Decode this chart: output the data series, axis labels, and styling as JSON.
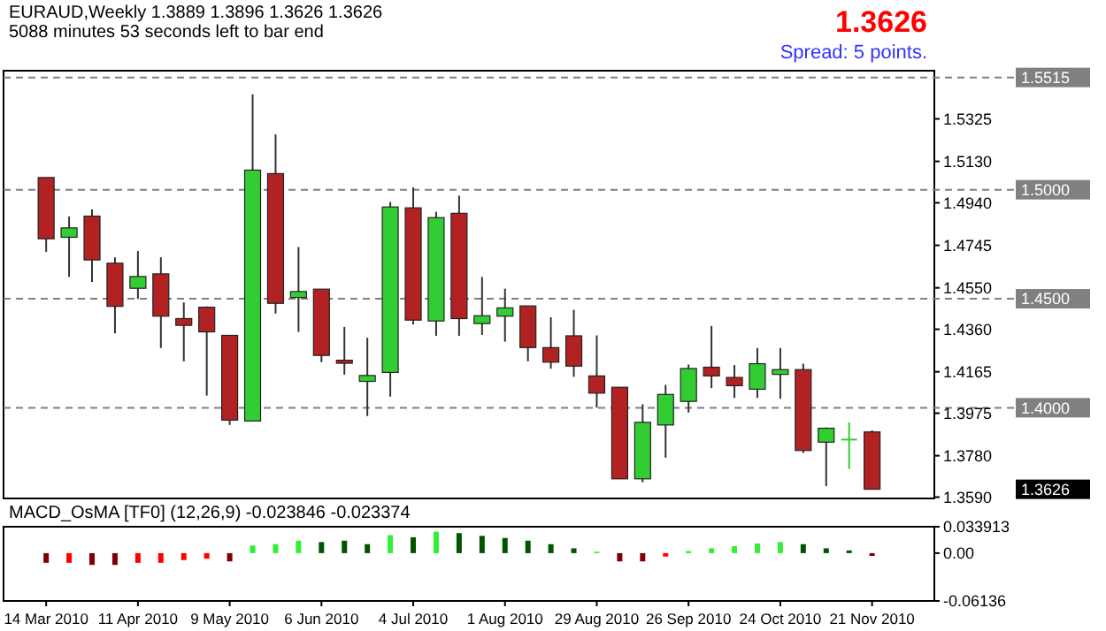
{
  "chart_data": [
    {
      "type": "candlestick",
      "title": "EURAUD,Weekly  1.3889 1.3896 1.3626 1.3626",
      "subtitle": "5088 minutes 53 seconds left to bar end",
      "x": [
        "2010-03-14",
        "2010-03-21",
        "2010-03-28",
        "2010-04-04",
        "2010-04-11",
        "2010-04-18",
        "2010-04-25",
        "2010-05-02",
        "2010-05-09",
        "2010-05-16",
        "2010-05-23",
        "2010-05-30",
        "2010-06-06",
        "2010-06-13",
        "2010-06-20",
        "2010-06-27",
        "2010-07-04",
        "2010-07-11",
        "2010-07-18",
        "2010-07-25",
        "2010-08-01",
        "2010-08-08",
        "2010-08-15",
        "2010-08-22",
        "2010-08-29",
        "2010-09-05",
        "2010-09-12",
        "2010-09-19",
        "2010-09-26",
        "2010-10-03",
        "2010-10-10",
        "2010-10-17",
        "2010-10-24",
        "2010-10-31",
        "2010-11-07",
        "2010-11-14",
        "2010-11-21"
      ],
      "ohlc": [
        [
          1.5056,
          1.5056,
          1.4715,
          1.4775
        ],
        [
          1.4782,
          1.4877,
          1.46,
          1.4825
        ],
        [
          1.4879,
          1.491,
          1.4577,
          1.4678
        ],
        [
          1.4663,
          1.469,
          1.4341,
          1.4465
        ],
        [
          1.4548,
          1.4719,
          1.4499,
          1.4602
        ],
        [
          1.4614,
          1.469,
          1.4274,
          1.442
        ],
        [
          1.4409,
          1.4483,
          1.4213,
          1.4378
        ],
        [
          1.4461,
          1.4465,
          1.4056,
          1.4348
        ],
        [
          1.4332,
          1.4332,
          1.3921,
          1.3943
        ],
        [
          1.3939,
          1.5438,
          1.3939,
          1.509
        ],
        [
          1.5074,
          1.5254,
          1.4432,
          1.4479
        ],
        [
          1.4506,
          1.4737,
          1.4348,
          1.4533
        ],
        [
          1.4544,
          1.4544,
          1.4209,
          1.424
        ],
        [
          1.4218,
          1.4371,
          1.4152,
          1.4204
        ],
        [
          1.4121,
          1.4321,
          1.3962,
          1.4148
        ],
        [
          1.4162,
          1.4944,
          1.4051,
          1.4921
        ],
        [
          1.4917,
          1.5011,
          1.4382,
          1.4402
        ],
        [
          1.4398,
          1.4899,
          1.433,
          1.4872
        ],
        [
          1.4892,
          1.4973,
          1.433,
          1.4409
        ],
        [
          1.4386,
          1.46,
          1.4334,
          1.4422
        ],
        [
          1.442,
          1.4546,
          1.4303,
          1.4458
        ],
        [
          1.4467,
          1.4467,
          1.4213,
          1.4276
        ],
        [
          1.4276,
          1.4415,
          1.4179,
          1.4209
        ],
        [
          1.433,
          1.4449,
          1.4142,
          1.4191
        ],
        [
          1.4146,
          1.4332,
          1.4,
          1.4067
        ],
        [
          1.4094,
          1.4094,
          1.3674,
          1.3674
        ],
        [
          1.3674,
          1.4016,
          1.3658,
          1.3933
        ],
        [
          1.3921,
          1.4105,
          1.3771,
          1.4061
        ],
        [
          1.4029,
          1.4198,
          1.3978,
          1.418
        ],
        [
          1.4186,
          1.4375,
          1.409,
          1.4146
        ],
        [
          1.4139,
          1.4196,
          1.4045,
          1.4101
        ],
        [
          1.4085,
          1.4274,
          1.4045,
          1.4202
        ],
        [
          1.4153,
          1.4274,
          1.4041,
          1.4175
        ],
        [
          1.4175,
          1.4202,
          1.3793,
          1.3804
        ],
        [
          1.3842,
          1.391,
          1.364,
          1.3906
        ],
        [
          1.3858,
          1.3933,
          1.3719,
          1.3858
        ],
        [
          1.3889,
          1.3896,
          1.3626,
          1.3626
        ]
      ],
      "colors": [
        "#b22222",
        "#32cd32",
        "#b22222",
        "#b22222",
        "#32cd32",
        "#b22222",
        "#b22222",
        "#b22222",
        "#b22222",
        "#32cd32",
        "#b22222",
        "#32cd32",
        "#b22222",
        "#b22222",
        "#32cd32",
        "#32cd32",
        "#b22222",
        "#32cd32",
        "#b22222",
        "#32cd32",
        "#32cd32",
        "#b22222",
        "#b22222",
        "#b22222",
        "#b22222",
        "#b22222",
        "#32cd32",
        "#32cd32",
        "#32cd32",
        "#b22222",
        "#b22222",
        "#32cd32",
        "#32cd32",
        "#b22222",
        "#32cd32",
        "#32cd32",
        "#b22222"
      ],
      "xlim": [
        "2010-03-01",
        "2010-12-10"
      ],
      "ylim": [
        1.3584,
        1.5546
      ],
      "yticks": [
        1.5325,
        {
          "value": 1.513,
          "label": "1.5130"
        },
        {
          "value": 1.494,
          "label": "1.4940"
        },
        1.4745,
        {
          "value": 1.455,
          "label": "1.4550"
        },
        {
          "value": 1.436,
          "label": "1.4360"
        },
        1.4165,
        1.3975,
        {
          "value": 1.378,
          "label": "1.3780"
        },
        {
          "value": 1.359,
          "label": "1.3590"
        }
      ],
      "tick_labels": "y",
      "ref_lines": [
        {
          "axis": "y",
          "value": 1.5515,
          "label": "1.5515",
          "color": "#808080",
          "line_style": "dashed"
        },
        {
          "axis": "y",
          "value": 1.5,
          "label": "1.5000",
          "color": "#808080",
          "line_style": "dashed"
        },
        {
          "axis": "y",
          "value": 1.45,
          "label": "1.4500",
          "color": "#808080",
          "line_style": "dashed"
        },
        {
          "axis": "y",
          "value": 1.4,
          "label": "1.4000",
          "color": "#808080",
          "line_style": "dashed"
        }
      ],
      "annotations": [
        "1.3626",
        "1.3626",
        "Spread: 5 points."
      ]
    },
    {
      "type": "bar",
      "title": "MACD_OsMA [TF0] (12,26,9)  -0.023846 -0.023374",
      "x": [
        "2010-03-14",
        "2010-03-21",
        "2010-03-28",
        "2010-04-04",
        "2010-04-11",
        "2010-04-18",
        "2010-04-25",
        "2010-05-02",
        "2010-05-09",
        "2010-05-16",
        "2010-05-23",
        "2010-05-30",
        "2010-06-06",
        "2010-06-13",
        "2010-06-20",
        "2010-06-27",
        "2010-07-04",
        "2010-07-11",
        "2010-07-18",
        "2010-07-25",
        "2010-08-01",
        "2010-08-08",
        "2010-08-15",
        "2010-08-22",
        "2010-08-29",
        "2010-09-05",
        "2010-09-12",
        "2010-09-19",
        "2010-09-26",
        "2010-10-03",
        "2010-10-10",
        "2010-10-17",
        "2010-10-24",
        "2010-10-31",
        "2010-11-07",
        "2010-11-14",
        "2010-11-21"
      ],
      "values": [
        -0.0124,
        -0.0124,
        -0.0151,
        -0.0151,
        -0.0124,
        -0.0124,
        -0.0089,
        -0.0071,
        -0.0106,
        0.0098,
        0.0115,
        0.016,
        0.0142,
        0.016,
        0.0115,
        0.0231,
        0.0204,
        0.0275,
        0.0257,
        0.0222,
        0.0195,
        0.016,
        0.0115,
        0.0062,
        0.0018,
        -0.0106,
        -0.0106,
        -0.0044,
        0.0027,
        0.0062,
        0.0089,
        0.0124,
        0.0142,
        0.0115,
        0.0062,
        0.0035,
        -0.0035
      ],
      "colors": [
        "#800000",
        "#ff0000",
        "#800000",
        "#800000",
        "#ff0000",
        "#ff0000",
        "#ff0000",
        "#ff0000",
        "#800000",
        "#33ee33",
        "#33ee33",
        "#33ee33",
        "#005500",
        "#005500",
        "#005500",
        "#33ee33",
        "#005500",
        "#33ee33",
        "#005500",
        "#005500",
        "#005500",
        "#005500",
        "#005500",
        "#005500",
        "#33ee33",
        "#800000",
        "#800000",
        "#ff0000",
        "#33ee33",
        "#33ee33",
        "#33ee33",
        "#33ee33",
        "#33ee33",
        "#005500",
        "#005500",
        "#005500",
        "#800000"
      ],
      "xlim": [
        "2010-03-01",
        "2010-12-10"
      ],
      "ylim": [
        -0.06136,
        0.033913
      ],
      "yticks": [
        0.033913,
        {
          "value": 0,
          "label": "0.00"
        },
        -0.06136
      ],
      "xticks": [
        {
          "value": "2010-03-14",
          "label": "14 Mar 2010"
        },
        {
          "value": "2010-04-11",
          "label": "11 Apr 2010"
        },
        {
          "value": "2010-05-09",
          "label": "9 May 2010"
        },
        {
          "value": "2010-06-06",
          "label": "6 Jun 2010"
        },
        {
          "value": "2010-07-04",
          "label": "4 Jul 2010"
        },
        {
          "value": "2010-08-01",
          "label": "1 Aug 2010"
        },
        {
          "value": "2010-08-29",
          "label": "29 Aug 2010"
        },
        {
          "value": "2010-09-26",
          "label": "26 Sep 2010"
        },
        {
          "value": "2010-10-24",
          "label": "24 Oct 2010"
        },
        {
          "value": "2010-11-21",
          "label": "21 Nov 2010"
        }
      ]
    }
  ]
}
